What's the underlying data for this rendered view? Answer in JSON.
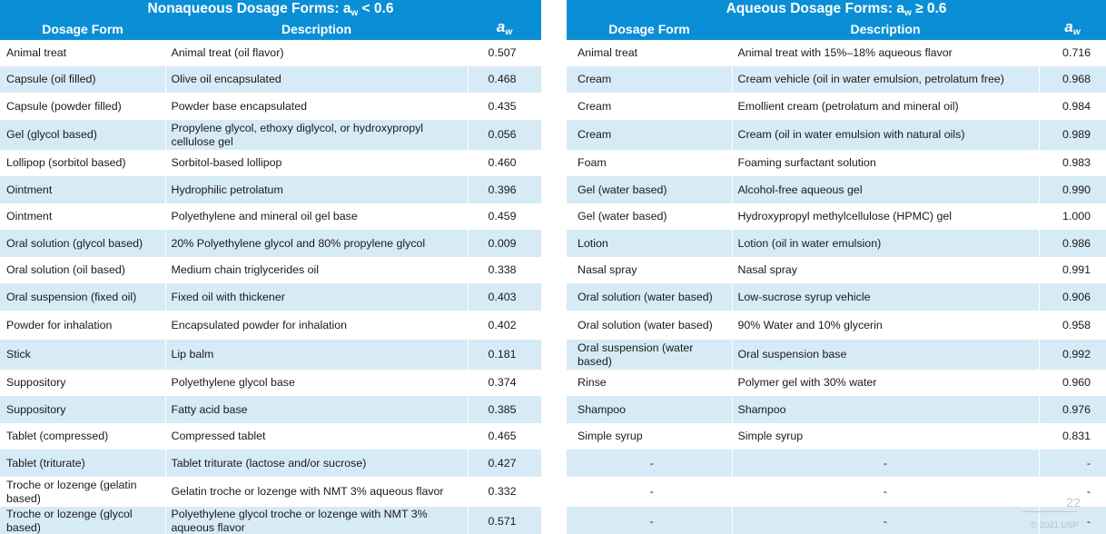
{
  "left": {
    "title_prefix": "Nonaqueous Dosage Forms: a",
    "title_sub": "w",
    "title_suffix": " < 0.6",
    "headers": {
      "form": "Dosage Form",
      "description": "Description",
      "aw": "a",
      "aw_sub": "w"
    },
    "rows": [
      {
        "form": "Animal treat",
        "description": "Animal treat (oil flavor)",
        "aw": "0.507"
      },
      {
        "form": "Capsule (oil filled)",
        "description": "Olive oil encapsulated",
        "aw": "0.468"
      },
      {
        "form": "Capsule (powder filled)",
        "description": "Powder base encapsulated",
        "aw": "0.435"
      },
      {
        "form": "Gel (glycol based)",
        "description": "Propylene glycol, ethoxy diglycol, or hydroxypropyl cellulose gel",
        "aw": "0.056"
      },
      {
        "form": "Lollipop (sorbitol based)",
        "description": "Sorbitol-based lollipop",
        "aw": "0.460"
      },
      {
        "form": "Ointment",
        "description": "Hydrophilic petrolatum",
        "aw": "0.396"
      },
      {
        "form": "Ointment",
        "description": "Polyethylene and mineral oil gel base",
        "aw": "0.459"
      },
      {
        "form": "Oral solution (glycol based)",
        "description": "20% Polyethylene glycol and 80% propylene glycol",
        "aw": "0.009"
      },
      {
        "form": "Oral solution (oil based)",
        "description": "Medium chain triglycerides oil",
        "aw": "0.338"
      },
      {
        "form": "Oral suspension (fixed oil)",
        "description": "Fixed oil with thickener",
        "aw": "0.403"
      },
      {
        "form": "Powder for inhalation",
        "description": "Encapsulated powder for inhalation",
        "aw": "0.402"
      },
      {
        "form": "Stick",
        "description": "Lip balm",
        "aw": "0.181"
      },
      {
        "form": "Suppository",
        "description": "Polyethylene glycol base",
        "aw": "0.374"
      },
      {
        "form": "Suppository",
        "description": "Fatty acid base",
        "aw": "0.385"
      },
      {
        "form": "Tablet (compressed)",
        "description": "Compressed tablet",
        "aw": "0.465"
      },
      {
        "form": "Tablet (triturate)",
        "description": "Tablet triturate (lactose and/or sucrose)",
        "aw": "0.427"
      },
      {
        "form": "Troche or lozenge (gelatin based)",
        "description": "Gelatin troche or lozenge with NMT 3% aqueous flavor",
        "aw": "0.332"
      },
      {
        "form": "Troche or lozenge (glycol based)",
        "description": "Polyethylene glycol troche or lozenge with NMT 3% aqueous flavor",
        "aw": "0.571"
      }
    ]
  },
  "right": {
    "title_prefix": "Aqueous Dosage Forms: a",
    "title_sub": "w",
    "title_suffix": " ≥ 0.6",
    "headers": {
      "form": "Dosage Form",
      "description": "Description",
      "aw": "a",
      "aw_sub": "w"
    },
    "rows": [
      {
        "form": "Animal treat",
        "description": "Animal treat with 15%–18% aqueous flavor",
        "aw": "0.716"
      },
      {
        "form": "Cream",
        "description": "Cream vehicle (oil in water emulsion, petrolatum free)",
        "aw": "0.968"
      },
      {
        "form": "Cream",
        "description": "Emollient cream (petrolatum and mineral oil)",
        "aw": "0.984"
      },
      {
        "form": "Cream",
        "description": "Cream (oil in water emulsion with natural oils)",
        "aw": "0.989"
      },
      {
        "form": "Foam",
        "description": "Foaming surfactant solution",
        "aw": "0.983"
      },
      {
        "form": "Gel (water based)",
        "description": "Alcohol-free aqueous gel",
        "aw": "0.990"
      },
      {
        "form": "Gel (water based)",
        "description": "Hydroxypropyl methylcellulose (HPMC) gel",
        "aw": "1.000"
      },
      {
        "form": "Lotion",
        "description": "Lotion (oil in water emulsion)",
        "aw": "0.986"
      },
      {
        "form": "Nasal spray",
        "description": "Nasal spray",
        "aw": "0.991"
      },
      {
        "form": "Oral solution (water based)",
        "description": "Low-sucrose syrup vehicle",
        "aw": "0.906"
      },
      {
        "form": "Oral solution (water based)",
        "description": "90% Water and 10% glycerin",
        "aw": "0.958"
      },
      {
        "form": "Oral suspension (water based)",
        "description": "Oral suspension base",
        "aw": "0.992"
      },
      {
        "form": "Rinse",
        "description": "Polymer gel with 30% water",
        "aw": "0.960"
      },
      {
        "form": "Shampoo",
        "description": "Shampoo",
        "aw": "0.976"
      },
      {
        "form": "Simple syrup",
        "description": "Simple syrup",
        "aw": "0.831"
      },
      {
        "form": "-",
        "description": "-",
        "aw": "-"
      },
      {
        "form": "-",
        "description": "-",
        "aw": "-"
      },
      {
        "form": "-",
        "description": "-",
        "aw": "-"
      }
    ]
  },
  "footer": {
    "page_number": "22",
    "copyright": "© 2021 USP"
  },
  "colors": {
    "header_blue": "#0a8fd6",
    "row_alt": "#d6ebf6"
  }
}
